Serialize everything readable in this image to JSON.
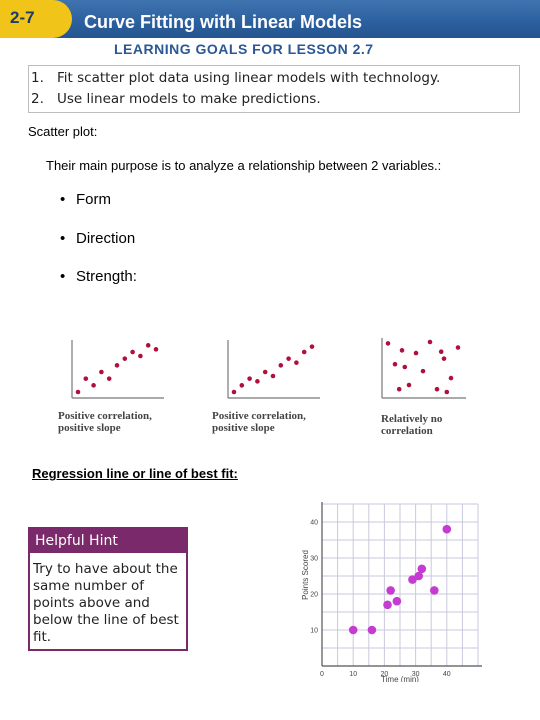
{
  "header": {
    "lesson_number": "2-7",
    "title": "Curve Fitting with Linear Models",
    "goals_title": "LEARNING GOALS FOR LESSON 2.7"
  },
  "goals": [
    {
      "num": "1.",
      "text": "Fit scatter plot data using linear models with technology."
    },
    {
      "num": "2.",
      "text": "Use linear models to make predictions."
    }
  ],
  "scatter": {
    "heading": "Scatter plot:",
    "purpose": "Their main purpose is to analyze  a relationship between 2 variables.:",
    "bullets": [
      "Form",
      "Direction",
      "Strength:"
    ],
    "bullet_char": "•"
  },
  "examples": [
    {
      "line1": "Positive correlation,",
      "line2": "positive slope"
    },
    {
      "line1": "Positive correlation,",
      "line2": "positive slope"
    },
    {
      "line1": "Relatively no",
      "line2": "correlation"
    }
  ],
  "regression": {
    "heading": "Regression line or line of best fit:"
  },
  "hint": {
    "title": "Helpful Hint",
    "body": "Try to have about the same number of points above and below the line of best fit."
  },
  "colors": {
    "header_blue": "#2b5f9e",
    "badge_yellow": "#f0c419",
    "hint_purple": "#7a2a6a",
    "mini_dot": "#b0103c",
    "graph_dot": "#c43cd0"
  },
  "chart_data": [
    {
      "type": "scatter",
      "title": "",
      "points": [
        [
          1,
          1
        ],
        [
          1.5,
          2
        ],
        [
          2,
          1.5
        ],
        [
          2.5,
          2.5
        ],
        [
          3,
          2
        ],
        [
          3.5,
          3
        ],
        [
          4,
          3.5
        ],
        [
          4.5,
          4
        ],
        [
          5,
          3.7
        ],
        [
          5.5,
          4.5
        ],
        [
          6,
          4.2
        ]
      ]
    },
    {
      "type": "scatter",
      "title": "",
      "points": [
        [
          1,
          1
        ],
        [
          1.5,
          1.5
        ],
        [
          2,
          2
        ],
        [
          2.5,
          1.8
        ],
        [
          3,
          2.5
        ],
        [
          3.5,
          2.2
        ],
        [
          4,
          3
        ],
        [
          4.5,
          3.5
        ],
        [
          5,
          3.2
        ],
        [
          5.5,
          4
        ],
        [
          6,
          4.4
        ]
      ]
    },
    {
      "type": "scatter",
      "title": "",
      "points": [
        [
          1,
          4.5
        ],
        [
          1.5,
          3
        ],
        [
          2,
          4
        ],
        [
          2.5,
          1.5
        ],
        [
          3,
          3.8
        ],
        [
          3.5,
          2.5
        ],
        [
          4,
          4.6
        ],
        [
          4.5,
          1.2
        ],
        [
          5,
          3.4
        ],
        [
          5.5,
          2
        ],
        [
          6,
          4.2
        ],
        [
          2.2,
          2.8
        ],
        [
          4.8,
          3.9
        ],
        [
          1.8,
          1.2
        ],
        [
          5.2,
          1
        ]
      ]
    },
    {
      "type": "scatter",
      "xlabel": "Time (min)",
      "ylabel": "Points Scored",
      "xlim": [
        0,
        50
      ],
      "ylim": [
        0,
        45
      ],
      "x_ticks": [
        "0",
        "10",
        "20",
        "30",
        "40"
      ],
      "y_ticks": [
        "10",
        "20",
        "30",
        "40"
      ],
      "x": [
        10,
        16,
        21,
        22,
        24,
        29,
        31,
        32,
        36,
        40
      ],
      "y": [
        10,
        10,
        17,
        21,
        18,
        24,
        25,
        27,
        21,
        38
      ]
    }
  ]
}
